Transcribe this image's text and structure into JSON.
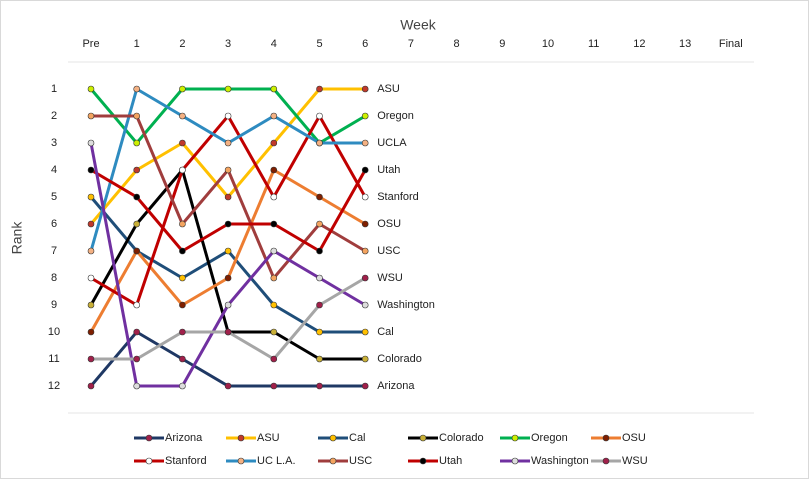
{
  "chart_data": {
    "type": "line",
    "x_title": "Week",
    "y_title": "Rank",
    "categories": [
      "Pre",
      "1",
      "2",
      "3",
      "4",
      "5",
      "6",
      "7",
      "8",
      "9",
      "10",
      "11",
      "12",
      "13",
      "Final"
    ],
    "ylim": [
      0,
      13
    ],
    "y_inverted": true,
    "yticks": [
      1,
      2,
      3,
      4,
      5,
      6,
      7,
      8,
      9,
      10,
      11,
      12
    ],
    "legend": "bottom",
    "series": [
      {
        "name": "Arizona",
        "end_label": "Arizona",
        "color": "#1f3864",
        "marker_color": "#a0204a",
        "values": [
          12,
          10,
          11,
          12,
          12,
          12,
          12,
          null,
          null,
          null,
          null,
          null,
          null,
          null,
          null
        ]
      },
      {
        "name": "ASU",
        "end_label": "ASU",
        "color": "#ffc000",
        "marker_color": "#c0392b",
        "values": [
          6,
          4,
          3,
          5,
          3,
          1,
          1,
          null,
          null,
          null,
          null,
          null,
          null,
          null,
          null
        ]
      },
      {
        "name": "Cal",
        "end_label": "Cal",
        "color": "#1f4e79",
        "marker_color": "#ffc000",
        "values": [
          5,
          7,
          8,
          7,
          9,
          10,
          10,
          null,
          null,
          null,
          null,
          null,
          null,
          null,
          null
        ]
      },
      {
        "name": "Colorado",
        "end_label": "Colorado",
        "color": "#000000",
        "marker_color": "#c9b037",
        "values": [
          9,
          6,
          4,
          10,
          10,
          11,
          11,
          null,
          null,
          null,
          null,
          null,
          null,
          null,
          null
        ]
      },
      {
        "name": "Oregon",
        "end_label": "Oregon",
        "color": "#00b050",
        "marker_color": "#ccf000",
        "values": [
          1,
          3,
          1,
          1,
          1,
          3,
          2,
          null,
          null,
          null,
          null,
          null,
          null,
          null,
          null
        ]
      },
      {
        "name": "OSU",
        "end_label": "OSU",
        "color": "#ed7d31",
        "marker_color": "#7f1f00",
        "values": [
          10,
          7,
          9,
          8,
          4,
          5,
          6,
          null,
          null,
          null,
          null,
          null,
          null,
          null,
          null
        ]
      },
      {
        "name": "Stanford",
        "end_label": "Stanford",
        "color": "#c00000",
        "marker_color": "#ffffff",
        "values": [
          8,
          9,
          4,
          2,
          5,
          2,
          5,
          null,
          null,
          null,
          null,
          null,
          null,
          null,
          null
        ]
      },
      {
        "name": "UC L.A.",
        "end_label": "UCLA",
        "color": "#2e8bc0",
        "marker_color": "#f4b183",
        "values": [
          7,
          1,
          2,
          3,
          2,
          3,
          3,
          null,
          null,
          null,
          null,
          null,
          null,
          null,
          null
        ]
      },
      {
        "name": "USC",
        "end_label": "USC",
        "color": "#a03d3d",
        "marker_color": "#f4a460",
        "values": [
          2,
          2,
          6,
          4,
          8,
          6,
          7,
          null,
          null,
          null,
          null,
          null,
          null,
          null,
          null
        ]
      },
      {
        "name": "Utah",
        "end_label": "Utah",
        "color": "#c00000",
        "marker_color": "#000000",
        "values": [
          4,
          5,
          7,
          6,
          6,
          7,
          4,
          null,
          null,
          null,
          null,
          null,
          null,
          null,
          null
        ]
      },
      {
        "name": "Washington",
        "end_label": "Washington",
        "color": "#7030a0",
        "marker_color": "#dddddd",
        "values": [
          3,
          12,
          12,
          9,
          7,
          8,
          9,
          null,
          null,
          null,
          null,
          null,
          null,
          null,
          null
        ]
      },
      {
        "name": "WSU",
        "end_label": "WSU",
        "color": "#a6a6a6",
        "marker_color": "#a0204a",
        "values": [
          11,
          11,
          10,
          10,
          11,
          9,
          8,
          null,
          null,
          null,
          null,
          null,
          null,
          null,
          null
        ]
      }
    ]
  }
}
